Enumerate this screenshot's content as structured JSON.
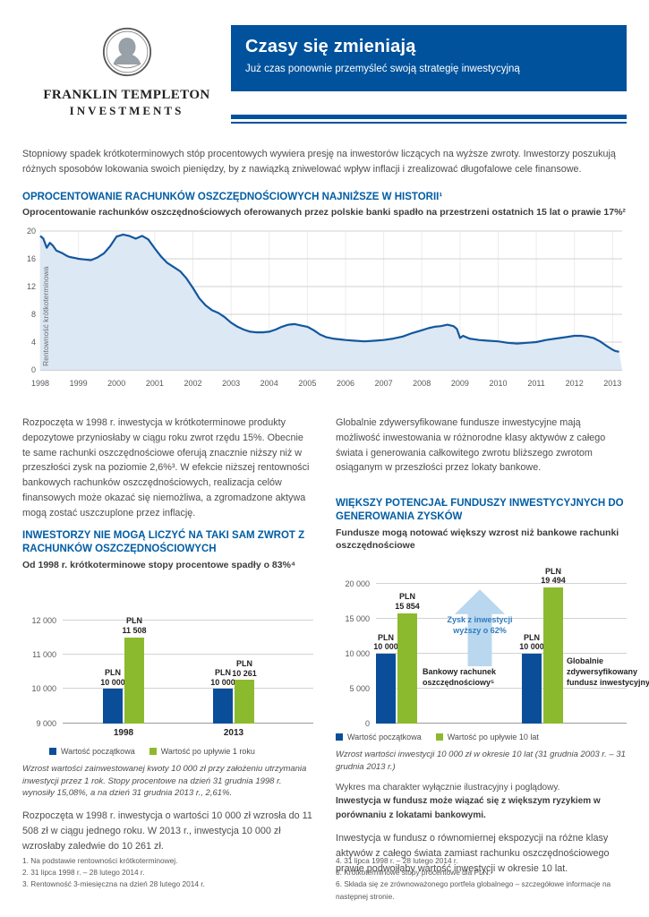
{
  "logo": {
    "brand_line1": "FRANKLIN TEMPLETON",
    "brand_line2": "INVESTMENTS"
  },
  "header": {
    "title": "Czasy się zmieniają",
    "subtitle": "Już czas ponownie przemyśleć swoją strategię inwestycyjną"
  },
  "intro": "Stopniowy spadek krótkoterminowych stóp procentowych wywiera presję na inwestorów liczących na wyższe zwroty. Inwestorzy poszukują różnych sposobów lokowania swoich pieniędzy, by z nawiązką zniwelować wpływ inflacji i zrealizować długofalowe cele finansowe.",
  "section1": {
    "heading": "OPROCENTOWANIE RACHUNKÓW OSZCZĘDNOŚCIOWYCH NAJNIŻSZE W HISTORII¹",
    "subheading": "Oprocentowanie rachunków oszczędnościowych oferowanych przez polskie banki spadło na przestrzeni ostatnich 15 lat o prawie 17%²"
  },
  "left_column": {
    "para1": "Rozpoczęta w 1998 r. inwestycja w krótkoterminowe produkty depozytowe przyniosłaby w ciągu roku zwrot rzędu 15%. Obecnie te same rachunki oszczędnościowe oferują znacznie niższy niż w przeszłości zysk na poziomie 2,6%³. W efekcie niższej rentowności bankowych rachunków oszczędnościowych, realizacja celów finansowych może okazać się niemożliwa, a zgromadzone aktywa mogą zostać uszczuplone przez inflację.",
    "heading": "INWESTORZY NIE MOGĄ LICZYĆ NA TAKI SAM ZWROT Z RACHUNKÓW OSZCZĘDNOŚCIOWYCH",
    "subheading": "Od 1998 r. krótkoterminowe stopy procentowe spadły o 83%⁴",
    "chart_note": "Wzrost wartości zainwestowanej kwoty 10 000 zł przy założeniu utrzymania inwestycji przez 1 rok. Stopy procentowe na dzień 31 grudnia 1998 r. wynosiły 15,08%, a na dzień 31 grudnia 2013 r., 2,61%.",
    "para2": "Rozpoczęta w 1998 r. inwestycja o wartości 10 000 zł wzrosła do 11 508 zł w ciągu jednego roku. W 2013 r., inwestycja 10 000 zł wzrosłaby zaledwie do 10 261 zł."
  },
  "right_column": {
    "para1": "Globalnie zdywersyfikowane fundusze inwestycyjne mają możliwość inwestowania w różnorodne klasy aktywów z całego świata i generowania całkowitego zwrotu bliższego zwrotom osiąganym w przeszłości przez lokaty bankowe.",
    "heading": "WIĘKSZY POTENCJAŁ FUNDUSZY INWESTYCYJNYCH DO GENEROWANIA ZYSKÓW",
    "subheading": "Fundusze mogą notować większy wzrost niż bankowe rachunki oszczędnościowe",
    "chart_note": "Wzrost wartości inwestycji 10 000 zł w okresie 10 lat (31 grudnia 2003 r. – 31 grudnia 2013 r.)",
    "disclaimer": "Wykres ma charakter wyłącznie ilustracyjny i poglądowy.",
    "risk_note": "Inwestycja w fundusz może wiązać się z większym ryzykiem w porównaniu z lokatami bankowymi.",
    "para2": "Inwestycja w fundusz o równomiernej ekspozycji na różne klasy aktywów z całego świata zamiast rachunku oszczędnościowego prawie podwoiłaby wartość inwestycji w okresie 10 lat."
  },
  "footnotes": {
    "left": [
      "1. Na podstawie rentowności krótkoterminowej.",
      "2. 31 lipca 1998 r. – 28 lutego 2014 r.",
      "3. Rentowność 3-miesięczna na dzień 28 lutego 2014 r."
    ],
    "right": [
      "4. 31 lipca 1998 r. – 28 lutego 2014 r.",
      "5. Krótkoterminowe stopy procentowe dla PLN.",
      "6. Składa się ze zrównoważonego portfela globalnego – szczegółowe informacje na następnej stronie."
    ]
  },
  "colors": {
    "primary_blue": "#00529c",
    "heading_blue": "#005DA4",
    "bar_blue": "#0A4E9A",
    "bar_green": "#8CBA2E",
    "area_fill": "#DCE8F4",
    "line_blue": "#14579E",
    "arrow_blue": "#B9D7EE",
    "arrow_text_blue": "#2F7CC0",
    "text_gray": "#4D4D4F"
  },
  "chart_data": [
    {
      "type": "area",
      "title": "Oprocentowanie rachunków oszczędnościowych oferowanych przez polskie banki, 1998–2013",
      "ylabel": "Rentowność krótkoterminowa",
      "xlim": [
        1998,
        2013.25
      ],
      "ylim": [
        0,
        20
      ],
      "yticks": [
        0,
        4,
        8,
        12,
        16,
        20
      ],
      "xticks": [
        1998,
        1999,
        2000,
        2001,
        2002,
        2003,
        2004,
        2005,
        2006,
        2007,
        2008,
        2009,
        2010,
        2011,
        2012,
        2013
      ],
      "grid": true,
      "points": [
        [
          1998.0,
          19.3
        ],
        [
          1998.08,
          18.9
        ],
        [
          1998.17,
          17.6
        ],
        [
          1998.25,
          18.3
        ],
        [
          1998.33,
          17.9
        ],
        [
          1998.42,
          17.2
        ],
        [
          1998.5,
          17.0
        ],
        [
          1998.58,
          16.8
        ],
        [
          1998.67,
          16.5
        ],
        [
          1998.75,
          16.3
        ],
        [
          1998.83,
          16.2
        ],
        [
          1998.92,
          16.1
        ],
        [
          1999.0,
          16.0
        ],
        [
          1999.17,
          15.9
        ],
        [
          1999.33,
          15.8
        ],
        [
          1999.5,
          16.2
        ],
        [
          1999.67,
          16.8
        ],
        [
          1999.83,
          17.8
        ],
        [
          2000.0,
          19.2
        ],
        [
          2000.17,
          19.5
        ],
        [
          2000.33,
          19.3
        ],
        [
          2000.5,
          18.9
        ],
        [
          2000.67,
          19.3
        ],
        [
          2000.83,
          18.8
        ],
        [
          2001.0,
          17.5
        ],
        [
          2001.17,
          16.3
        ],
        [
          2001.33,
          15.4
        ],
        [
          2001.5,
          14.8
        ],
        [
          2001.67,
          14.2
        ],
        [
          2001.83,
          13.2
        ],
        [
          2002.0,
          11.8
        ],
        [
          2002.17,
          10.3
        ],
        [
          2002.33,
          9.3
        ],
        [
          2002.5,
          8.6
        ],
        [
          2002.67,
          8.2
        ],
        [
          2002.83,
          7.6
        ],
        [
          2003.0,
          6.8
        ],
        [
          2003.17,
          6.2
        ],
        [
          2003.33,
          5.8
        ],
        [
          2003.5,
          5.5
        ],
        [
          2003.67,
          5.4
        ],
        [
          2003.83,
          5.4
        ],
        [
          2004.0,
          5.5
        ],
        [
          2004.17,
          5.8
        ],
        [
          2004.33,
          6.2
        ],
        [
          2004.5,
          6.5
        ],
        [
          2004.67,
          6.6
        ],
        [
          2004.83,
          6.4
        ],
        [
          2005.0,
          6.2
        ],
        [
          2005.17,
          5.7
        ],
        [
          2005.33,
          5.1
        ],
        [
          2005.5,
          4.7
        ],
        [
          2005.67,
          4.5
        ],
        [
          2005.83,
          4.4
        ],
        [
          2006.0,
          4.3
        ],
        [
          2006.25,
          4.2
        ],
        [
          2006.5,
          4.1
        ],
        [
          2006.75,
          4.2
        ],
        [
          2007.0,
          4.3
        ],
        [
          2007.25,
          4.5
        ],
        [
          2007.5,
          4.8
        ],
        [
          2007.75,
          5.3
        ],
        [
          2008.0,
          5.7
        ],
        [
          2008.17,
          6.0
        ],
        [
          2008.33,
          6.2
        ],
        [
          2008.5,
          6.3
        ],
        [
          2008.67,
          6.5
        ],
        [
          2008.83,
          6.3
        ],
        [
          2008.92,
          5.9
        ],
        [
          2009.0,
          4.6
        ],
        [
          2009.08,
          4.9
        ],
        [
          2009.25,
          4.5
        ],
        [
          2009.5,
          4.3
        ],
        [
          2009.75,
          4.2
        ],
        [
          2010.0,
          4.1
        ],
        [
          2010.25,
          3.9
        ],
        [
          2010.5,
          3.8
        ],
        [
          2010.75,
          3.9
        ],
        [
          2011.0,
          4.0
        ],
        [
          2011.25,
          4.3
        ],
        [
          2011.5,
          4.5
        ],
        [
          2011.75,
          4.7
        ],
        [
          2012.0,
          4.9
        ],
        [
          2012.17,
          4.9
        ],
        [
          2012.33,
          4.8
        ],
        [
          2012.5,
          4.6
        ],
        [
          2012.67,
          4.1
        ],
        [
          2012.83,
          3.5
        ],
        [
          2013.0,
          2.9
        ],
        [
          2013.08,
          2.7
        ],
        [
          2013.17,
          2.6
        ]
      ]
    },
    {
      "type": "bar",
      "title": "Od 1998 r. krótkoterminowe stopy procentowe spadły o 83%⁴",
      "categories": [
        "1998",
        "2013"
      ],
      "series": [
        {
          "name": "Wartość początkowa",
          "values": [
            10000,
            10000
          ],
          "bar_labels": [
            [
              "PLN",
              "10 000"
            ],
            [
              "PLN",
              "10 000"
            ]
          ]
        },
        {
          "name": "Wartość po upływie 1 roku",
          "values": [
            11508,
            10261
          ],
          "bar_labels": [
            [
              "PLN",
              "11 508"
            ],
            [
              "PLN",
              "10 261"
            ]
          ]
        }
      ],
      "ylim": [
        9000,
        12000
      ],
      "yticks": [
        9000,
        10000,
        11000,
        12000
      ],
      "ytick_labels": [
        "9 000",
        "10 000",
        "11 000",
        "12 000"
      ],
      "legend_position": "bottom"
    },
    {
      "type": "bar",
      "title": "Fundusze mogą notować większy wzrost niż bankowe rachunki oszczędnościowe",
      "categories": [
        "Bankowy rachunek oszczędnościowy⁵",
        "Globalnie zdywersyfikowany fundusz inwestycyjny⁶"
      ],
      "series": [
        {
          "name": "Wartość początkowa",
          "values": [
            10000,
            10000
          ],
          "bar_labels": [
            [
              "PLN",
              "10 000"
            ],
            [
              "PLN",
              "10 000"
            ]
          ]
        },
        {
          "name": "Wartość po upływie 10 lat",
          "values": [
            15854,
            19494
          ],
          "bar_labels": [
            [
              "PLN",
              "15 854"
            ],
            [
              "PLN",
              "19 494"
            ]
          ]
        }
      ],
      "ylim": [
        0,
        20000
      ],
      "yticks": [
        0,
        5000,
        10000,
        15000,
        20000
      ],
      "ytick_labels": [
        "0",
        "5 000",
        "10 000",
        "15 000",
        "20 000"
      ],
      "annotation": {
        "lines": [
          "Zysk z inwestycji",
          "wyższy o 62%"
        ]
      },
      "legend_position": "bottom"
    }
  ]
}
